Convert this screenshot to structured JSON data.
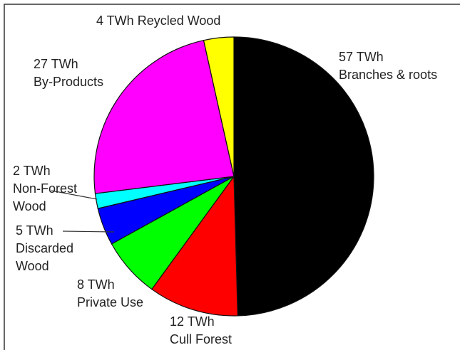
{
  "chart_data": {
    "type": "pie",
    "categories": [
      "Branches & roots",
      "Cull Forest",
      "Private Use",
      "Discarded Wood",
      "Non-Forest Wood",
      "By-Products",
      "Reycled Wood"
    ],
    "values": [
      57,
      12,
      8,
      5,
      2,
      27,
      4
    ],
    "value_labels": [
      "57 TWh",
      "12 TWh",
      "8 TWh",
      "5 TWh",
      "2 TWh",
      "27 TWh",
      "4 TWh"
    ],
    "colors": [
      "#000000",
      "#ff0000",
      "#00ff00",
      "#0000ff",
      "#00ffff",
      "#ff00ff",
      "#ffff00"
    ]
  }
}
